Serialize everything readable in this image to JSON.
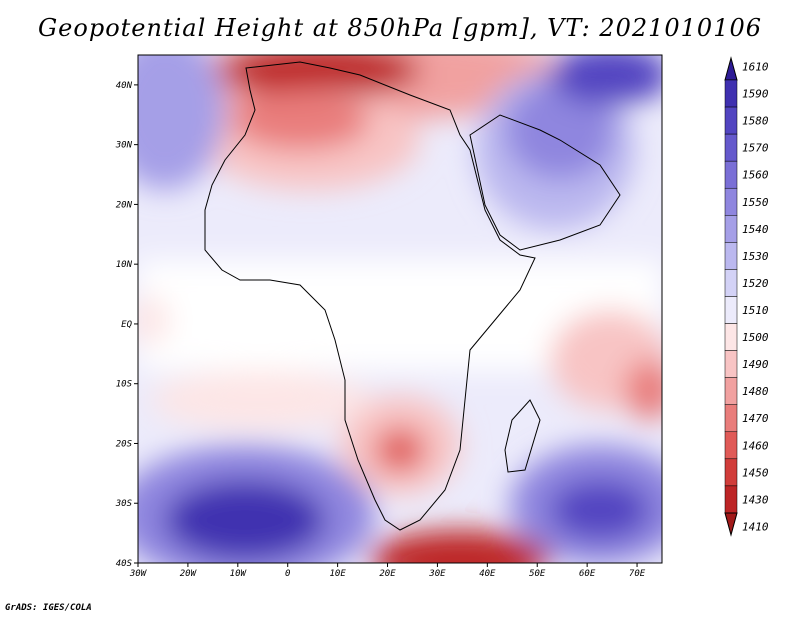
{
  "title": "Geopotential Height at 850hPa [gpm], VT: 2021010106",
  "credit": "GrADS: IGES/COLA",
  "lat_labels": [
    "40N",
    "30N",
    "20N",
    "10N",
    "EQ",
    "10S",
    "20S",
    "30S",
    "40S"
  ],
  "lat_values": [
    40,
    30,
    20,
    10,
    0,
    -10,
    -20,
    -30,
    -40
  ],
  "lon_labels": [
    "30W",
    "20W",
    "10W",
    "0",
    "10E",
    "20E",
    "30E",
    "40E",
    "50E",
    "60E",
    "70E"
  ],
  "lon_values": [
    -30,
    -20,
    -10,
    0,
    10,
    20,
    30,
    40,
    50,
    60,
    70
  ],
  "extent": {
    "lon": [
      -30,
      75
    ],
    "lat": [
      -40,
      45
    ]
  },
  "colorbar": {
    "levels": [
      "1610",
      "1590",
      "1580",
      "1570",
      "1560",
      "1550",
      "1540",
      "1530",
      "1520",
      "1510",
      "1500",
      "1490",
      "1480",
      "1470",
      "1460",
      "1450",
      "1430",
      "1410"
    ],
    "colors": [
      "#2e1b96",
      "#3f30b0",
      "#5245c1",
      "#6559cc",
      "#7a6fd6",
      "#8f86df",
      "#a59fe7",
      "#bbb8ef",
      "#d3d2f6",
      "#ecebfb",
      "#fde6e6",
      "#f8c4c4",
      "#f1a1a0",
      "#e97d7b",
      "#e05a57",
      "#d13d3a",
      "#bd2526",
      "#a11919"
    ]
  },
  "features": [
    {
      "name": "north-africa-high",
      "lon": 5,
      "lat": 40,
      "level": 17
    },
    {
      "name": "sahara-high",
      "lon": 10,
      "lat": 27,
      "level": 13
    },
    {
      "name": "southern-africa-high",
      "lon": 22,
      "lat": -22,
      "level": 14
    },
    {
      "name": "south-atlantic-low",
      "lon": -8,
      "lat": -33,
      "level": 0
    },
    {
      "name": "south-indian-low",
      "lon": 62,
      "lat": -30,
      "level": 1
    },
    {
      "name": "south-cape-high",
      "lon": 38,
      "lat": -40,
      "level": 17
    },
    {
      "name": "iran-low",
      "lon": 60,
      "lat": 42,
      "level": 2
    },
    {
      "name": "arabia-low",
      "lon": 50,
      "lat": 27,
      "level": 6
    },
    {
      "name": "madagascar-east-high",
      "lon": 72,
      "lat": -12,
      "level": 13
    }
  ]
}
